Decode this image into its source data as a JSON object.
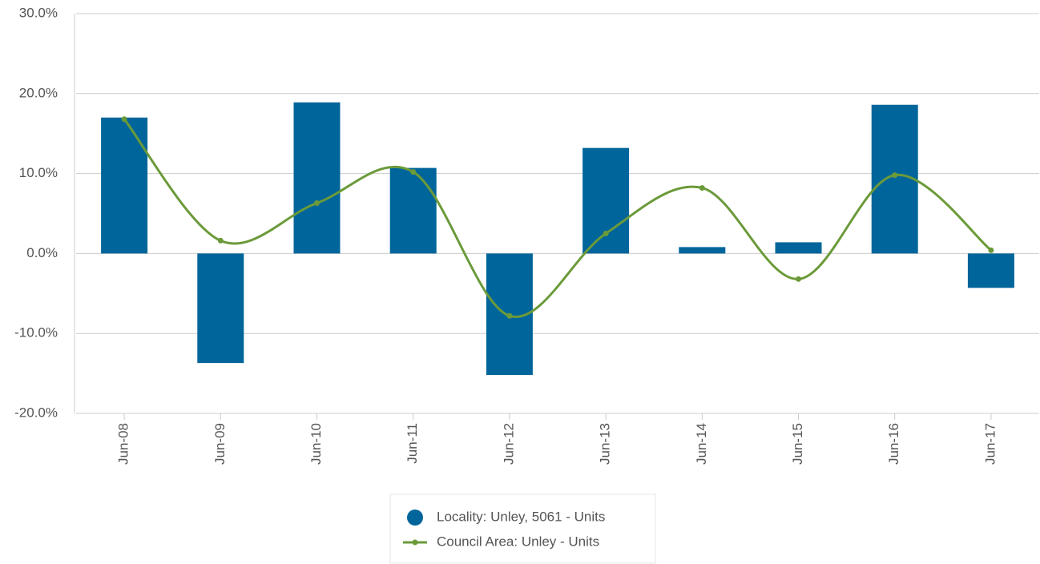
{
  "chart_data": {
    "type": "bar_line",
    "categories": [
      "Jun-08",
      "Jun-09",
      "Jun-10",
      "Jun-11",
      "Jun-12",
      "Jun-13",
      "Jun-14",
      "Jun-15",
      "Jun-16",
      "Jun-17"
    ],
    "series": [
      {
        "name": "Locality: Unley, 5061 - Units",
        "type": "bar",
        "color": "#00659a",
        "values": [
          17.0,
          -13.7,
          18.9,
          10.7,
          -15.2,
          13.2,
          0.8,
          1.4,
          18.6,
          -4.3
        ]
      },
      {
        "name": "Council Area: Unley - Units",
        "type": "line",
        "color": "#6b9a3a",
        "values": [
          16.8,
          1.6,
          6.3,
          10.2,
          -7.8,
          2.5,
          8.2,
          -3.2,
          9.8,
          0.4
        ]
      }
    ],
    "ylim": [
      -20,
      30
    ],
    "yticks": [
      {
        "value": -20,
        "label": "-20.0%"
      },
      {
        "value": -10,
        "label": "-10.0%"
      },
      {
        "value": 0,
        "label": "0.0%"
      },
      {
        "value": 10,
        "label": "10.0%"
      },
      {
        "value": 20,
        "label": "20.0%"
      },
      {
        "value": 30,
        "label": "30.0%"
      }
    ],
    "grid": true,
    "legend": "bottom"
  }
}
